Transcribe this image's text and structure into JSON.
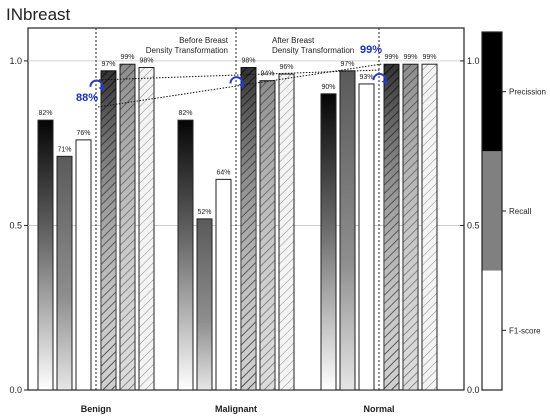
{
  "title": "INbreast",
  "chart_data": {
    "type": "bar",
    "title": "INbreast",
    "categories": [
      "Benign",
      "Malignant",
      "Normal"
    ],
    "ylim": [
      0.0,
      1.1
    ],
    "yticks": [
      "0.0",
      "0.5",
      "1.0"
    ],
    "grid": true,
    "groups": [
      {
        "label": "Before Breast\nDensity Transformation",
        "style": "gradient",
        "series": [
          {
            "name": "Precission",
            "values": [
              0.82,
              0.82,
              0.9
            ],
            "labels": [
              "82%",
              "82%",
              "90%"
            ]
          },
          {
            "name": "Recall",
            "values": [
              0.71,
              0.52,
              0.97
            ],
            "labels": [
              "71%",
              "52%",
              "97%"
            ]
          },
          {
            "name": "F1-score",
            "values": [
              0.76,
              0.64,
              0.93
            ],
            "labels": [
              "76%",
              "64%",
              "93%"
            ]
          }
        ]
      },
      {
        "label": "After Breast\nDensity Transformation",
        "style": "hatched",
        "series": [
          {
            "name": "Precission",
            "values": [
              0.97,
              0.98,
              0.99
            ],
            "labels": [
              "97%",
              "98%",
              "99%"
            ]
          },
          {
            "name": "Recall",
            "values": [
              0.99,
              0.94,
              0.99
            ],
            "labels": [
              "99%",
              "94%",
              "99%"
            ]
          },
          {
            "name": "F1-score",
            "values": [
              0.98,
              0.96,
              0.99
            ],
            "labels": [
              "98%",
              "96%",
              "99%"
            ]
          }
        ]
      }
    ],
    "annotations": [
      {
        "text": "88%",
        "color": "#1a2fb8"
      },
      {
        "text": "99%",
        "color": "#1a2fb8"
      }
    ],
    "colorbar": {
      "labels": [
        "Precission",
        "Recall",
        "F1-score"
      ],
      "ticks": [
        "0.0",
        "0.5",
        "1.0"
      ],
      "colors": [
        "#000000",
        "#808080",
        "#ffffff"
      ]
    }
  }
}
